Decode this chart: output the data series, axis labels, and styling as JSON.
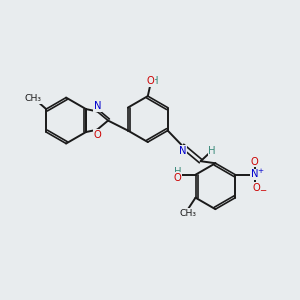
{
  "background_color": "#e8ecee",
  "bond_color": "#1a1a1a",
  "N_color": "#0000cd",
  "O_color": "#cc0000",
  "H_color": "#3a8a7a",
  "figsize": [
    3.0,
    3.0
  ],
  "dpi": 100,
  "xlim": [
    0,
    10
  ],
  "ylim": [
    0,
    10
  ]
}
